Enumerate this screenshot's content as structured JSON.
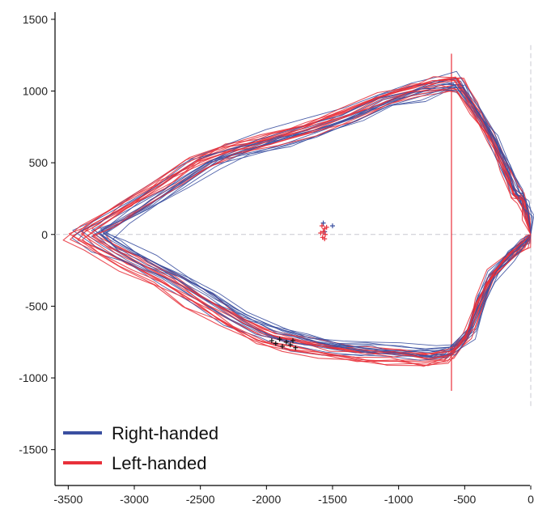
{
  "chart_data": {
    "type": "line",
    "title": "",
    "xlabel": "",
    "ylabel": "",
    "xlim": [
      -3600,
      0
    ],
    "ylim": [
      -1750,
      1550
    ],
    "x_ticks": [
      -3500,
      -3000,
      -2500,
      -2000,
      -1500,
      -1000,
      -500,
      0
    ],
    "y_ticks": [
      1500,
      1000,
      500,
      0,
      -500,
      -1000,
      -1500
    ],
    "grid": false,
    "legend_position": "bottom-left",
    "series": [
      {
        "name": "Right-handed",
        "color": "#3a4fa0",
        "trace_count": 14,
        "path": [
          [
            0,
            0
          ],
          [
            -20,
            140
          ],
          [
            -55,
            250
          ],
          [
            -110,
            300
          ],
          [
            -190,
            470
          ],
          [
            -300,
            700
          ],
          [
            -430,
            900
          ],
          [
            -560,
            1080
          ],
          [
            -700,
            1070
          ],
          [
            -900,
            1030
          ],
          [
            -1150,
            960
          ],
          [
            -1400,
            860
          ],
          [
            -1700,
            760
          ],
          [
            -2000,
            680
          ],
          [
            -2300,
            600
          ],
          [
            -2550,
            520
          ],
          [
            -2800,
            370
          ],
          [
            -3050,
            220
          ],
          [
            -3300,
            80
          ],
          [
            -3450,
            0
          ],
          [
            -3300,
            -90
          ],
          [
            -3050,
            -210
          ],
          [
            -2800,
            -330
          ],
          [
            -2550,
            -470
          ],
          [
            -2300,
            -610
          ],
          [
            -2050,
            -720
          ],
          [
            -1800,
            -780
          ],
          [
            -1550,
            -820
          ],
          [
            -1300,
            -850
          ],
          [
            -1050,
            -860
          ],
          [
            -800,
            -880
          ],
          [
            -620,
            -860
          ],
          [
            -480,
            -720
          ],
          [
            -390,
            -480
          ],
          [
            -300,
            -300
          ],
          [
            -150,
            -150
          ],
          [
            -40,
            -60
          ],
          [
            0,
            0
          ]
        ],
        "markers": [
          [
            -1560,
            20
          ],
          [
            -1500,
            60
          ],
          [
            -1570,
            80
          ]
        ]
      },
      {
        "name": "Left-handed",
        "color": "#e8303a",
        "trace_count": 14,
        "path": [
          [
            0,
            0
          ],
          [
            -20,
            140
          ],
          [
            -55,
            250
          ],
          [
            -110,
            300
          ],
          [
            -190,
            470
          ],
          [
            -300,
            700
          ],
          [
            -430,
            900
          ],
          [
            -560,
            1080
          ],
          [
            -700,
            1070
          ],
          [
            -900,
            1030
          ],
          [
            -1150,
            960
          ],
          [
            -1400,
            860
          ],
          [
            -1700,
            760
          ],
          [
            -2000,
            680
          ],
          [
            -2300,
            600
          ],
          [
            -2550,
            520
          ],
          [
            -2800,
            370
          ],
          [
            -3050,
            220
          ],
          [
            -3300,
            80
          ],
          [
            -3450,
            0
          ],
          [
            -3300,
            -90
          ],
          [
            -3050,
            -210
          ],
          [
            -2800,
            -330
          ],
          [
            -2550,
            -470
          ],
          [
            -2300,
            -610
          ],
          [
            -2050,
            -720
          ],
          [
            -1800,
            -780
          ],
          [
            -1550,
            -820
          ],
          [
            -1300,
            -850
          ],
          [
            -1050,
            -860
          ],
          [
            -800,
            -880
          ],
          [
            -620,
            -860
          ],
          [
            -480,
            -720
          ],
          [
            -390,
            -480
          ],
          [
            -300,
            -300
          ],
          [
            -150,
            -150
          ],
          [
            -40,
            -60
          ],
          [
            0,
            0
          ]
        ],
        "markers": [
          [
            -1580,
            60
          ],
          [
            -1560,
            40
          ],
          [
            -1570,
            20
          ],
          [
            -1555,
            0
          ],
          [
            -1575,
            -20
          ],
          [
            -1560,
            -30
          ],
          [
            -1590,
            10
          ],
          [
            -1545,
            50
          ]
        ]
      }
    ],
    "black_markers": [
      [
        -1960,
        -740
      ],
      [
        -1930,
        -760
      ],
      [
        -1900,
        -730
      ],
      [
        -1880,
        -780
      ],
      [
        -1850,
        -750
      ],
      [
        -1820,
        -770
      ],
      [
        -1800,
        -740
      ],
      [
        -1780,
        -790
      ]
    ],
    "reference_lines": {
      "horizontal_dashed_y": 0,
      "vertical_dashed_x": 0,
      "vertical_dashed_range": [
        -1200,
        1320
      ],
      "vertical_solid_x": -600,
      "vertical_solid_range": [
        -1090,
        1260
      ],
      "vertical_solid_color": "#e8303a"
    }
  }
}
